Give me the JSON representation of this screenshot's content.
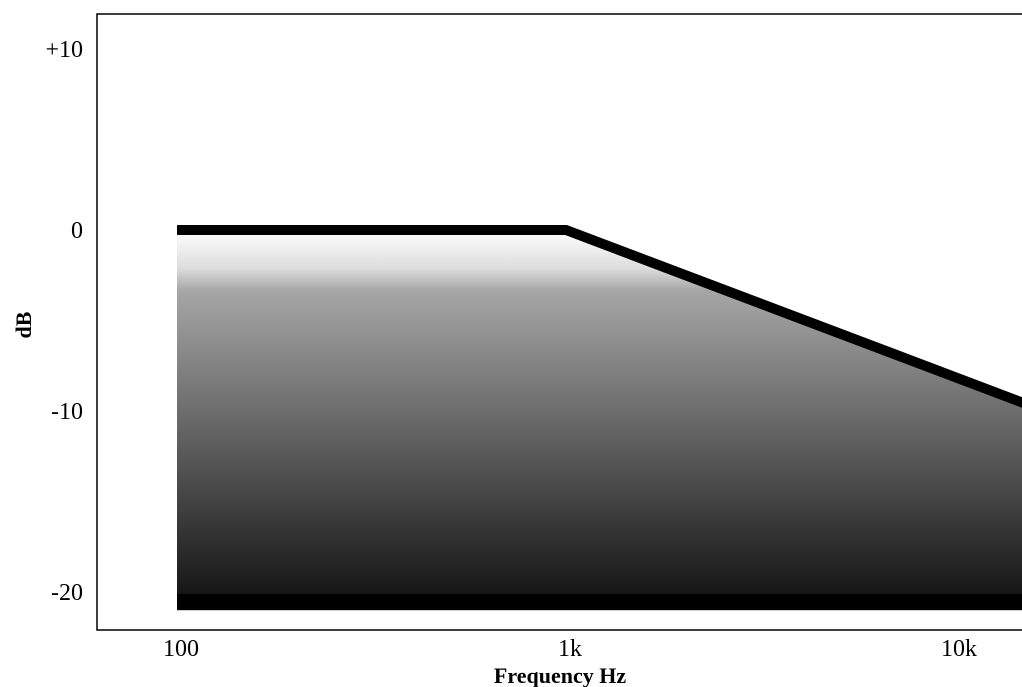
{
  "chart_data": {
    "type": "area",
    "xscale": "log",
    "xlabel": "Frequency Hz",
    "ylabel": "dB",
    "xlim": [
      70,
      17000
    ],
    "ylim": [
      -21,
      11
    ],
    "x_ticks": [
      {
        "value": 100,
        "label": "100"
      },
      {
        "value": 1000,
        "label": "1k"
      },
      {
        "value": 10000,
        "label": "10k"
      }
    ],
    "y_ticks": [
      {
        "value": 10,
        "label": "+10"
      },
      {
        "value": 0,
        "label": "0"
      },
      {
        "value": -10,
        "label": "-10"
      },
      {
        "value": -20,
        "label": "-20"
      }
    ],
    "series": [
      {
        "x": [
          100,
          1000,
          17000
        ],
        "y": [
          0,
          0,
          -10
        ]
      }
    ],
    "area_baseline": -21,
    "fill_gradient": [
      "#ffffff",
      "#000000"
    ],
    "line_color": "#000000",
    "grid": false,
    "legend": "none"
  }
}
